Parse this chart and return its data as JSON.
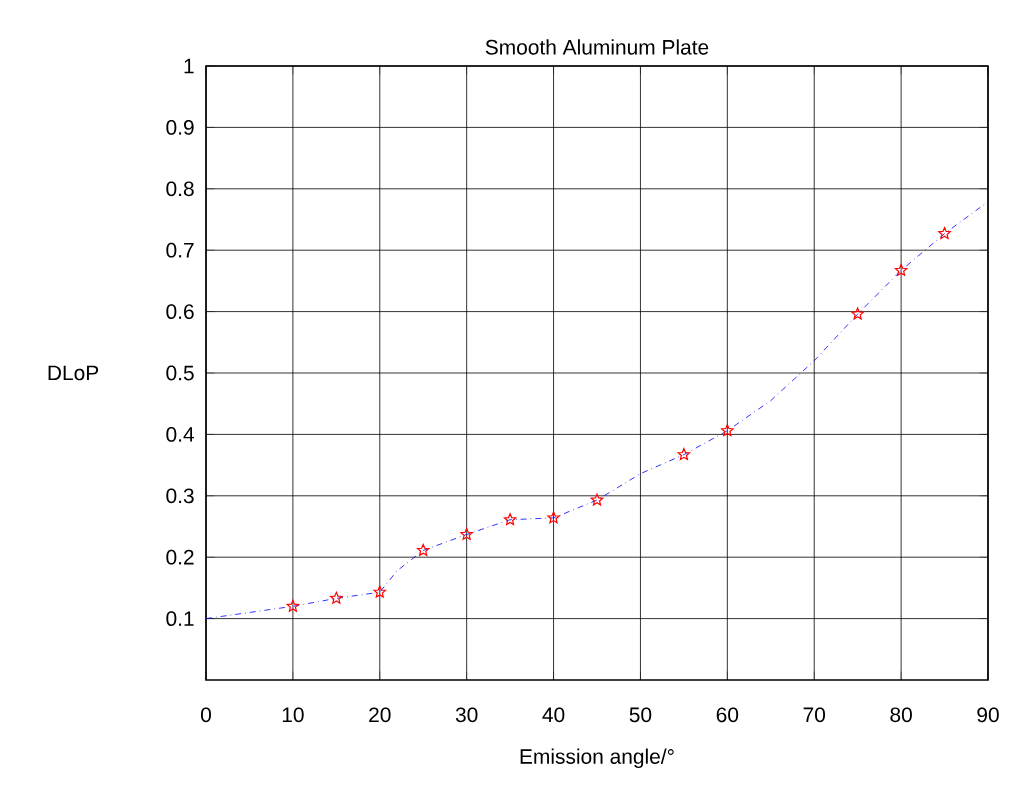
{
  "chart_data": {
    "type": "line",
    "title": "Smooth Aluminum Plate",
    "xlabel": "Emission angle/°",
    "ylabel": "DLoP",
    "xlim": [
      0,
      90
    ],
    "ylim": [
      0,
      1
    ],
    "xticks": [
      0,
      10,
      20,
      30,
      40,
      50,
      60,
      70,
      80,
      90
    ],
    "yticks": [
      0.1,
      0.2,
      0.3,
      0.4,
      0.5,
      0.6,
      0.7,
      0.8,
      0.9,
      1
    ],
    "grid": true,
    "series": [
      {
        "type": "line",
        "color": "#0000ff",
        "line_style": "dashed",
        "marker": "none",
        "x": [
          0,
          5,
          10,
          15,
          20,
          22,
          25,
          30,
          35,
          40,
          45,
          50,
          55,
          60,
          65,
          70,
          75,
          80,
          85,
          90
        ],
        "values": [
          0.1,
          0.11,
          0.12,
          0.133,
          0.143,
          0.178,
          0.211,
          0.237,
          0.261,
          0.264,
          0.293,
          0.336,
          0.367,
          0.406,
          0.455,
          0.52,
          0.596,
          0.667,
          0.727,
          0.779
        ]
      },
      {
        "type": "scatter",
        "color": "#ff0000",
        "marker": "star",
        "x": [
          10,
          15,
          20,
          25,
          30,
          35,
          40,
          45,
          55,
          60,
          75,
          80,
          85
        ],
        "values": [
          0.12,
          0.133,
          0.143,
          0.211,
          0.237,
          0.261,
          0.264,
          0.293,
          0.367,
          0.406,
          0.596,
          0.667,
          0.727
        ]
      }
    ]
  }
}
